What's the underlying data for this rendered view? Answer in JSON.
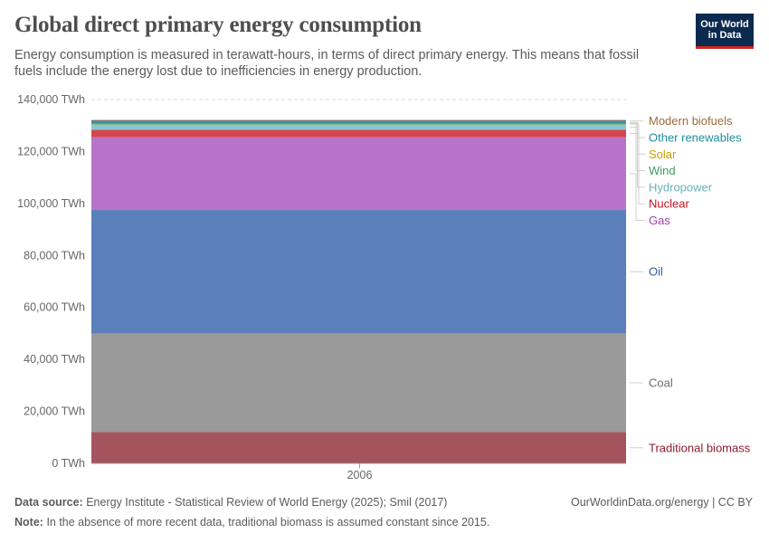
{
  "header": {
    "title": "Global direct primary energy consumption",
    "subtitle": "Energy consumption is measured in terawatt-hours, in terms of direct primary energy. This means that fossil fuels include the energy lost due to inefficiencies in energy production.",
    "logo_line1": "Our World",
    "logo_line2": "in Data"
  },
  "footer": {
    "source_label": "Data source:",
    "source_text": "Energy Institute - Statistical Review of World Energy (2025); Smil (2017)",
    "note_label": "Note:",
    "note_text": "In the absence of more recent data, traditional biomass is assumed constant since 2015.",
    "url": "OurWorldinData.org/energy | CC BY"
  },
  "chart_data": {
    "type": "area",
    "stacked": true,
    "x": [
      2006
    ],
    "xlabel": "",
    "ylabel": "",
    "ylim": [
      0,
      140000
    ],
    "yticks": [
      0,
      20000,
      40000,
      60000,
      80000,
      100000,
      120000,
      140000
    ],
    "ytick_labels": [
      "0 TWh",
      "20,000 TWh",
      "40,000 TWh",
      "60,000 TWh",
      "80,000 TWh",
      "100,000 TWh",
      "120,000 TWh",
      "140,000 TWh"
    ],
    "xtick_labels": [
      "2006"
    ],
    "grid": true,
    "legend_position": "right",
    "series": [
      {
        "name": "Traditional biomass",
        "values": [
          12000
        ],
        "color": "#a5545e",
        "label_color": "#8c1a2f"
      },
      {
        "name": "Coal",
        "values": [
          38000
        ],
        "color": "#9a9a9a",
        "label_color": "#6d6d6d"
      },
      {
        "name": "Oil",
        "values": [
          47500
        ],
        "color": "#5b7fbb",
        "label_color": "#2c5ea5"
      },
      {
        "name": "Gas",
        "values": [
          28000
        ],
        "color": "#b873c8",
        "label_color": "#a43cb4"
      },
      {
        "name": "Nuclear",
        "values": [
          2900
        ],
        "color": "#d5474e",
        "label_color": "#c1121f"
      },
      {
        "name": "Hydropower",
        "values": [
          2000
        ],
        "color": "#88c7cf",
        "label_color": "#6ab0b8"
      },
      {
        "name": "Wind",
        "values": [
          300
        ],
        "color": "#4ea36b",
        "label_color": "#3f9a5d"
      },
      {
        "name": "Solar",
        "values": [
          50
        ],
        "color": "#d9b240",
        "label_color": "#c8a000"
      },
      {
        "name": "Other renewables",
        "values": [
          800
        ],
        "color": "#2f8c9c",
        "label_color": "#1d8ea3"
      },
      {
        "name": "Modern biofuels",
        "values": [
          400
        ],
        "color": "#a7773f",
        "label_color": "#9d6b3a"
      }
    ]
  }
}
